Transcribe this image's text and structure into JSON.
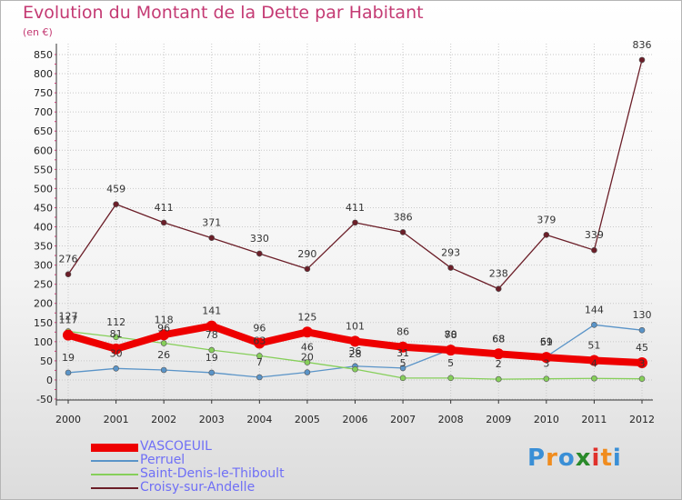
{
  "title": "Evolution du Montant de la Dette par Habitant",
  "subtitle": "(en €)",
  "logo": {
    "text": [
      "P",
      "r",
      "o",
      "x",
      "i",
      "t",
      "i"
    ],
    "colors": [
      "#3a8fd6",
      "#f08c1e",
      "#3a8fd6",
      "#2a8a2a",
      "#e0312b",
      "#f08c1e",
      "#3a8fd6"
    ]
  },
  "chart_data": {
    "type": "line",
    "x": [
      "2000",
      "2001",
      "2002",
      "2003",
      "2004",
      "2005",
      "2006",
      "2007",
      "2008",
      "2009",
      "2010",
      "2011",
      "2012"
    ],
    "ylim": [
      -50,
      850
    ],
    "yticks": [
      "-50",
      "0",
      "50",
      "100",
      "150",
      "200",
      "250",
      "300",
      "350",
      "400",
      "450",
      "500",
      "550",
      "600",
      "650",
      "700",
      "750",
      "800",
      "850"
    ],
    "grid": true,
    "legend_position": "bottom-left",
    "series": [
      {
        "name": "VASCOEUIL",
        "color": "#ee0000",
        "values": [
          117,
          81,
          118,
          141,
          96,
          125,
          101,
          86,
          78,
          68,
          59,
          51,
          45
        ]
      },
      {
        "name": "Perruel",
        "color": "#5a94c8",
        "values": [
          19,
          30,
          26,
          19,
          7,
          20,
          36,
          31,
          80,
          68,
          61,
          144,
          130
        ]
      },
      {
        "name": "Saint-Denis-le-Thiboult",
        "color": "#86cf5a",
        "values": [
          127,
          112,
          96,
          78,
          63,
          46,
          28,
          5,
          5,
          2,
          3,
          4,
          3
        ]
      },
      {
        "name": "Croisy-sur-Andelle",
        "color": "#6b1e28",
        "values": [
          276,
          459,
          411,
          371,
          330,
          290,
          411,
          386,
          293,
          238,
          379,
          339,
          836
        ]
      }
    ]
  }
}
